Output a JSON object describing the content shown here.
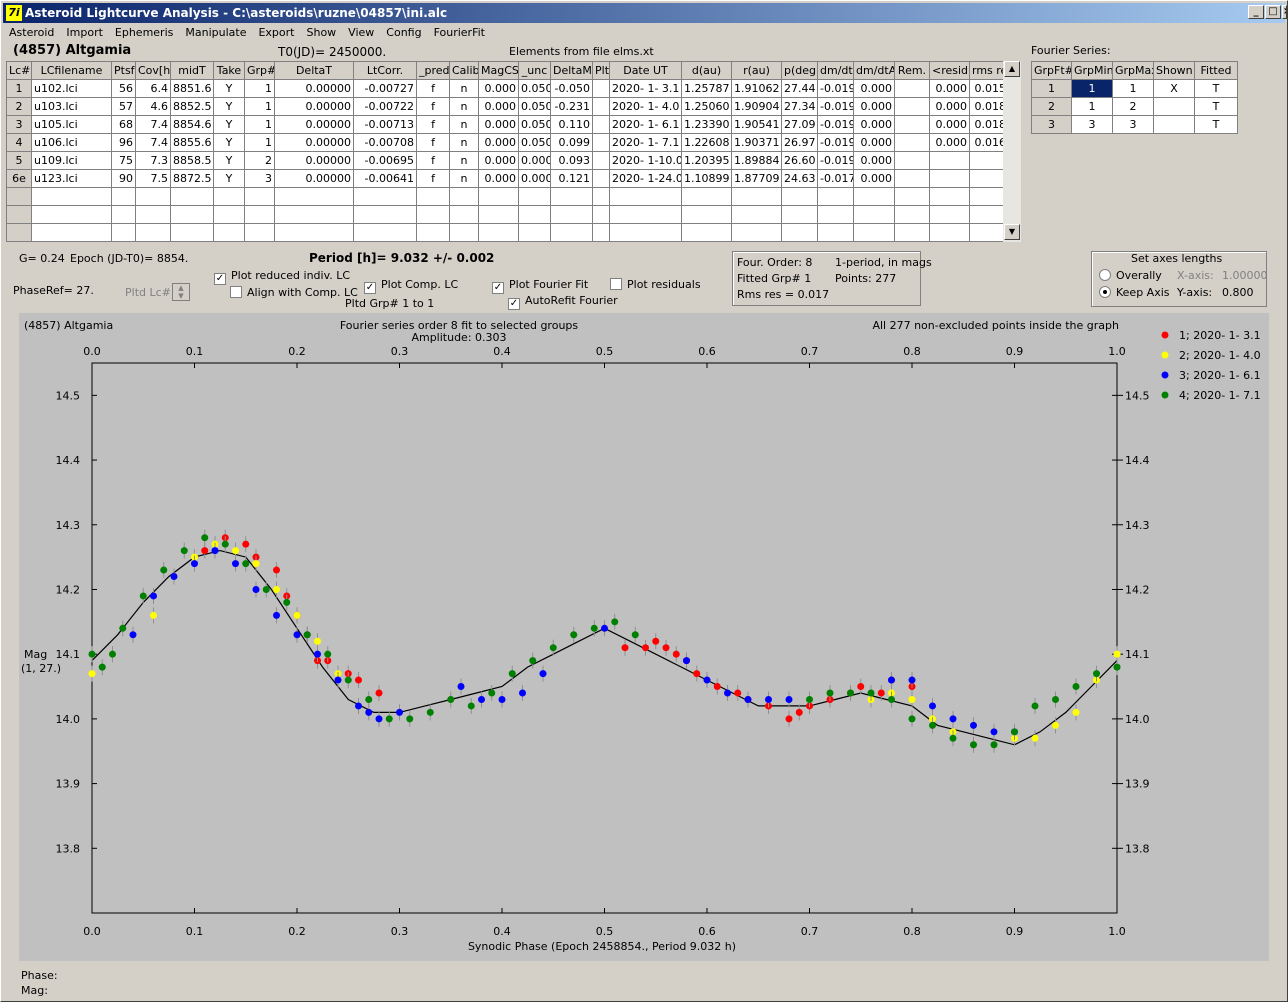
{
  "window": {
    "title": "Asteroid Lightcurve Analysis - C:\\asteroids\\ruzne\\04857\\ini.alc"
  },
  "menu": [
    "Asteroid",
    "Import",
    "Ephemeris",
    "Manipulate",
    "Export",
    "Show",
    "View",
    "Config",
    "FourierFit"
  ],
  "asteroid_name": "(4857) Altgamia",
  "t0": "T0(JD)= 2450000.",
  "elements": "Elements from file elms.xt",
  "fourier_label": "Fourier Series:",
  "lc_table": {
    "headers": [
      "Lc#",
      "LCfilename",
      "Ptsf",
      "Cov[h]",
      "midT",
      "Take",
      "Grp#",
      "DeltaT",
      "LtCorr.",
      "_pred.",
      "Calib.",
      "MagCS",
      "_unc",
      "DeltaM",
      "Plt",
      "Date UT",
      "d(au)",
      "r(au)",
      "p(deg)",
      "dm/dt",
      "dm/dtA",
      "Rem.",
      "<resid>",
      "rms res"
    ],
    "rows": [
      [
        "1",
        "u102.lci",
        "56",
        "6.4",
        "8851.6",
        "Y",
        "1",
        "0.00000",
        "-0.00727",
        "f",
        "n",
        "0.000",
        "0.050",
        "-0.050",
        "",
        "2020- 1- 3.1",
        "1.25787",
        "1.91062",
        "27.44",
        "-0.019",
        "0.000",
        "",
        "0.000",
        "0.015"
      ],
      [
        "2",
        "u103.lci",
        "57",
        "4.6",
        "8852.5",
        "Y",
        "1",
        "0.00000",
        "-0.00722",
        "f",
        "n",
        "0.000",
        "0.050",
        "-0.231",
        "",
        "2020- 1- 4.0",
        "1.25060",
        "1.90904",
        "27.34",
        "-0.019",
        "0.000",
        "",
        "0.000",
        "0.018"
      ],
      [
        "3",
        "u105.lci",
        "68",
        "7.4",
        "8854.6",
        "Y",
        "1",
        "0.00000",
        "-0.00713",
        "f",
        "n",
        "0.000",
        "0.050",
        "0.110",
        "",
        "2020- 1- 6.1",
        "1.23390",
        "1.90541",
        "27.09",
        "-0.019",
        "0.000",
        "",
        "0.000",
        "0.018"
      ],
      [
        "4",
        "u106.lci",
        "96",
        "7.4",
        "8855.6",
        "Y",
        "1",
        "0.00000",
        "-0.00708",
        "f",
        "n",
        "0.000",
        "0.050",
        "0.099",
        "",
        "2020- 1- 7.1",
        "1.22608",
        "1.90371",
        "26.97",
        "-0.019",
        "0.000",
        "",
        "0.000",
        "0.016"
      ],
      [
        "5",
        "u109.lci",
        "75",
        "7.3",
        "8858.5",
        "Y",
        "2",
        "0.00000",
        "-0.00695",
        "f",
        "n",
        "0.000",
        "0.000",
        "0.093",
        "",
        "2020- 1-10.0",
        "1.20395",
        "1.89884",
        "26.60",
        "-0.019",
        "0.000",
        "",
        "",
        ""
      ],
      [
        "6e",
        "u123.lci",
        "90",
        "7.5",
        "8872.5",
        "Y",
        "3",
        "0.00000",
        "-0.00641",
        "f",
        "n",
        "0.000",
        "0.000",
        "0.121",
        "",
        "2020- 1-24.0",
        "1.10899",
        "1.87709",
        "24.63",
        "-0.017",
        "0.000",
        "",
        "",
        ""
      ]
    ]
  },
  "fourier_table": {
    "headers": [
      "GrpFt#",
      "GrpMin",
      "GrpMax",
      "Shown",
      "Fitted"
    ],
    "rows": [
      [
        "1",
        "1",
        "1",
        "X",
        "T"
      ],
      [
        "2",
        "1",
        "2",
        "",
        "T"
      ],
      [
        "3",
        "3",
        "3",
        "",
        "T"
      ]
    ]
  },
  "controls": {
    "g": "G= 0.24",
    "epoch": "Epoch (JD-T0)= 8854.",
    "period": "Period [h]= 9.032 +/- 0.002",
    "phaseref": "PhaseRef= 27.",
    "pltd_lc": "Pltd Lc#:",
    "plot_reduced": "Plot reduced indiv. LC",
    "align_comp": "Align with Comp. LC",
    "plot_comp": "Plot Comp. LC",
    "pltd_grp": "Pltd Grp#  1   to   1",
    "plot_fourier": "Plot Fourier Fit",
    "autorefit": "AutoRefit Fourier",
    "plot_residuals": "Plot residuals"
  },
  "fit_info": {
    "order": "Four. Order:  8",
    "mode": "1-period, in mags",
    "fitted_grp": "Fitted Grp# 1",
    "points": "Points: 277",
    "rms": "Rms res     = 0.017"
  },
  "axes_box": {
    "title": "Set axes lengths",
    "overally": "Overally",
    "keep_axis": "Keep Axis",
    "xaxis_label": "X-axis:",
    "xaxis_val": "1.00000",
    "yaxis_label": "Y-axis:",
    "yaxis_val": "0.800"
  },
  "status": {
    "phase": "Phase:",
    "mag": "Mag:"
  },
  "chart_data": {
    "type": "scatter",
    "title": "Fourier series order 8 fit to selected groups",
    "subtitle": "Amplitude: 0.303",
    "top_left": "(4857) Altgamia",
    "top_right": "All 277 non-excluded points inside the graph",
    "xlabel": "Synodic Phase (Epoch 2458854., Period 9.032 h)",
    "ylabel": "Mag",
    "ylabel2": "(1, 27.)",
    "xlim": [
      0,
      1
    ],
    "ylim": [
      14.55,
      13.7
    ],
    "y_inverted": true,
    "xticks": [
      "0.0",
      "0.1",
      "0.2",
      "0.3",
      "0.4",
      "0.5",
      "0.6",
      "0.7",
      "0.8",
      "0.9",
      "1.0"
    ],
    "yticks": [
      "13.8",
      "13.9",
      "14.0",
      "14.1",
      "14.2",
      "14.3",
      "14.4",
      "14.5"
    ],
    "grid": false,
    "legend_position": "right",
    "series": [
      {
        "name": "1; 2020- 1- 3.1",
        "color": "#ff0000",
        "x": [
          0.11,
          0.13,
          0.15,
          0.16,
          0.18,
          0.19,
          0.2,
          0.21,
          0.22,
          0.23,
          0.25,
          0.26,
          0.28,
          0.52,
          0.54,
          0.55,
          0.56,
          0.57,
          0.58,
          0.59,
          0.61,
          0.63,
          0.64,
          0.66,
          0.68,
          0.69,
          0.7,
          0.72,
          0.74,
          0.75,
          0.77,
          0.78,
          0.8
        ],
        "y": [
          14.26,
          14.28,
          14.27,
          14.25,
          14.23,
          14.19,
          14.16,
          14.13,
          14.09,
          14.09,
          14.07,
          14.06,
          14.04,
          14.11,
          14.11,
          14.12,
          14.11,
          14.1,
          14.09,
          14.07,
          14.05,
          14.04,
          14.03,
          14.02,
          14.0,
          14.01,
          14.02,
          14.03,
          14.04,
          14.05,
          14.04,
          14.06,
          14.05
        ]
      },
      {
        "name": "2; 2020- 1- 4.0",
        "color": "#ffff00",
        "x": [
          0.0,
          0.02,
          0.04,
          0.06,
          0.08,
          0.1,
          0.12,
          0.14,
          0.16,
          0.18,
          0.2,
          0.22,
          0.24,
          0.76,
          0.78,
          0.8,
          0.82,
          0.84,
          0.86,
          0.88,
          0.9,
          0.92,
          0.94,
          0.96,
          0.98,
          1.0
        ],
        "y": [
          14.07,
          14.1,
          14.13,
          14.16,
          14.22,
          14.25,
          14.27,
          14.26,
          14.24,
          14.2,
          14.16,
          14.12,
          14.07,
          14.03,
          14.04,
          14.03,
          14.0,
          13.98,
          13.99,
          13.98,
          13.97,
          13.97,
          13.99,
          14.01,
          14.06,
          14.1
        ]
      },
      {
        "name": "3; 2020- 1- 6.1",
        "color": "#0000ff",
        "x": [
          0.04,
          0.06,
          0.08,
          0.1,
          0.12,
          0.14,
          0.16,
          0.18,
          0.2,
          0.22,
          0.24,
          0.26,
          0.27,
          0.28,
          0.3,
          0.36,
          0.38,
          0.4,
          0.42,
          0.44,
          0.5,
          0.58,
          0.6,
          0.62,
          0.64,
          0.66,
          0.68,
          0.78,
          0.8,
          0.82,
          0.84,
          0.86,
          0.88,
          0.9
        ],
        "y": [
          14.13,
          14.19,
          14.22,
          14.24,
          14.26,
          14.24,
          14.2,
          14.16,
          14.13,
          14.1,
          14.06,
          14.02,
          14.01,
          14.0,
          14.01,
          14.05,
          14.03,
          14.03,
          14.04,
          14.07,
          14.14,
          14.09,
          14.06,
          14.04,
          14.03,
          14.03,
          14.03,
          14.06,
          14.06,
          14.02,
          14.0,
          13.99,
          13.98,
          13.98
        ]
      },
      {
        "name": "4; 2020- 1- 7.1",
        "color": "#008000",
        "x": [
          0.0,
          0.01,
          0.02,
          0.03,
          0.05,
          0.07,
          0.09,
          0.11,
          0.13,
          0.15,
          0.17,
          0.19,
          0.21,
          0.23,
          0.25,
          0.27,
          0.29,
          0.31,
          0.33,
          0.35,
          0.37,
          0.39,
          0.41,
          0.43,
          0.45,
          0.47,
          0.49,
          0.51,
          0.53,
          0.7,
          0.72,
          0.74,
          0.76,
          0.78,
          0.8,
          0.82,
          0.84,
          0.86,
          0.88,
          0.9,
          0.92,
          0.94,
          0.96,
          0.98,
          1.0
        ],
        "y": [
          14.1,
          14.08,
          14.1,
          14.14,
          14.19,
          14.23,
          14.26,
          14.28,
          14.27,
          14.24,
          14.2,
          14.18,
          14.13,
          14.1,
          14.06,
          14.03,
          14.0,
          14.0,
          14.01,
          14.03,
          14.02,
          14.04,
          14.07,
          14.09,
          14.11,
          14.13,
          14.14,
          14.15,
          14.13,
          14.03,
          14.04,
          14.04,
          14.04,
          14.03,
          14.0,
          13.99,
          13.97,
          13.96,
          13.96,
          13.98,
          14.02,
          14.03,
          14.05,
          14.07,
          14.08
        ]
      }
    ],
    "fit_curve": {
      "x": [
        0.0,
        0.025,
        0.05,
        0.075,
        0.1,
        0.125,
        0.15,
        0.175,
        0.2,
        0.225,
        0.25,
        0.275,
        0.3,
        0.325,
        0.35,
        0.375,
        0.4,
        0.425,
        0.45,
        0.475,
        0.5,
        0.525,
        0.55,
        0.575,
        0.6,
        0.625,
        0.65,
        0.675,
        0.7,
        0.725,
        0.75,
        0.775,
        0.8,
        0.825,
        0.85,
        0.875,
        0.9,
        0.925,
        0.95,
        0.975,
        1.0
      ],
      "y": [
        14.09,
        14.13,
        14.18,
        14.22,
        14.25,
        14.26,
        14.25,
        14.2,
        14.14,
        14.08,
        14.03,
        14.01,
        14.01,
        14.02,
        14.03,
        14.04,
        14.05,
        14.08,
        14.1,
        14.12,
        14.14,
        14.12,
        14.1,
        14.08,
        14.06,
        14.04,
        14.02,
        14.02,
        14.02,
        14.03,
        14.04,
        14.03,
        14.02,
        13.99,
        13.98,
        13.97,
        13.96,
        13.98,
        14.01,
        14.05,
        14.09
      ]
    }
  }
}
